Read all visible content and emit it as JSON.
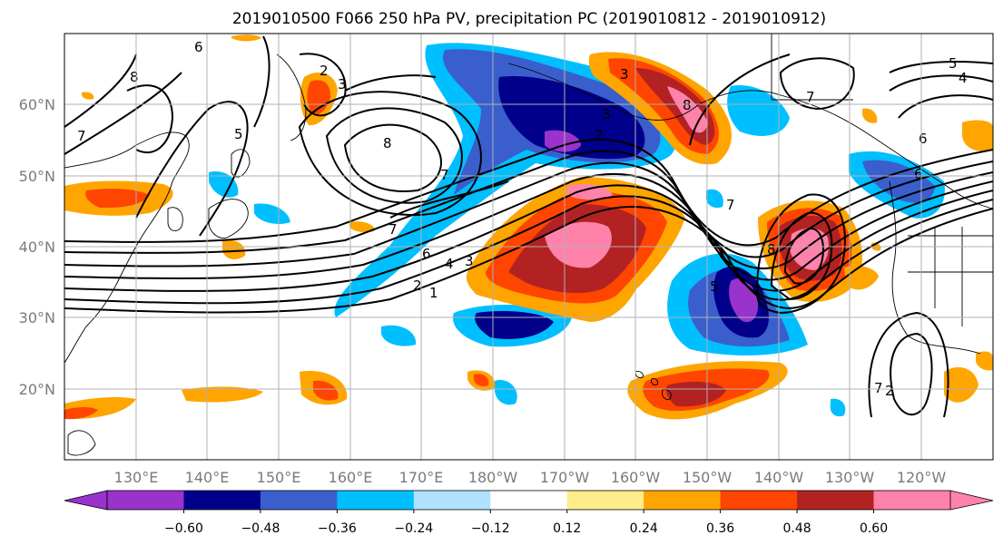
{
  "title": "2019010500 F066 250 hPa PV, precipitation PC (2019010812 - 2019010912)",
  "map": {
    "lat_ticks": [
      {
        "label": "60°N",
        "lat": 60
      },
      {
        "label": "50°N",
        "lat": 50
      },
      {
        "label": "40°N",
        "lat": 40
      },
      {
        "label": "30°N",
        "lat": 30
      },
      {
        "label": "20°N",
        "lat": 20
      }
    ],
    "lon_ticks": [
      {
        "label": "130°E",
        "lon": 130
      },
      {
        "label": "140°E",
        "lon": 140
      },
      {
        "label": "150°E",
        "lon": 150
      },
      {
        "label": "160°E",
        "lon": 160
      },
      {
        "label": "170°E",
        "lon": 170
      },
      {
        "label": "180°W",
        "lon": 180
      },
      {
        "label": "170°W",
        "lon": 190
      },
      {
        "label": "160°W",
        "lon": 200
      },
      {
        "label": "150°W",
        "lon": 210
      },
      {
        "label": "140°W",
        "lon": 220
      },
      {
        "label": "130°W",
        "lon": 230
      },
      {
        "label": "120°W",
        "lon": 240
      }
    ],
    "extent": {
      "lon_min": 120,
      "lon_max": 250,
      "lat_min": 10,
      "lat_max": 70
    },
    "gridlines": true,
    "contour_labels": [
      "6",
      "8",
      "7",
      "5",
      "2",
      "3",
      "8",
      "7",
      "7",
      "6",
      "4",
      "3",
      "2",
      "1",
      "3",
      "3",
      "2",
      "8",
      "5",
      "7",
      "6",
      "5",
      "4",
      "7",
      "2",
      "6",
      "8",
      "7"
    ]
  },
  "colorbar": {
    "colors": [
      "#9933cc",
      "#00008b",
      "#3a5fcd",
      "#00bfff",
      "#b0e2ff",
      "#ffffff",
      "#ffec8b",
      "#ffa500",
      "#ff4500",
      "#b22222",
      "#ff82ab"
    ],
    "tick_labels": [
      "−0.60",
      "−0.48",
      "−0.36",
      "−0.24",
      "−0.12",
      "0.12",
      "0.24",
      "0.36",
      "0.48",
      "0.60"
    ],
    "extend": "both"
  }
}
